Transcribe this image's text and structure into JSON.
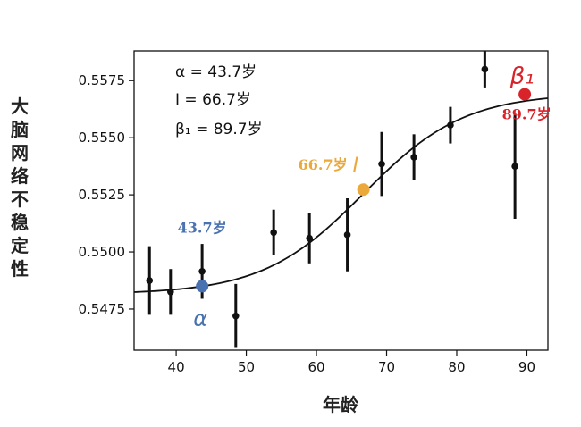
{
  "chart_data": {
    "type": "scatter",
    "xlabel": "年龄",
    "ylabel": "大脑网络不稳定性",
    "xlim": [
      34,
      93
    ],
    "ylim": [
      0.5457,
      0.5588
    ],
    "xticks": [
      40,
      50,
      60,
      70,
      80,
      90
    ],
    "xtick_labels": [
      "40",
      "50",
      "60",
      "70",
      "80",
      "90"
    ],
    "yticks": [
      0.5475,
      0.55,
      0.5525,
      0.555,
      0.5575
    ],
    "ytick_labels": [
      "0.5475",
      "0.5500",
      "0.5525",
      "0.5550",
      "0.5575"
    ],
    "grid": false,
    "points": [
      {
        "x": 36.2,
        "y": 0.54875,
        "err": 0.0015
      },
      {
        "x": 39.2,
        "y": 0.54825,
        "err": 0.001
      },
      {
        "x": 43.7,
        "y": 0.54915,
        "err": 0.0012
      },
      {
        "x": 48.5,
        "y": 0.5472,
        "err": 0.0014
      },
      {
        "x": 53.9,
        "y": 0.55085,
        "err": 0.001
      },
      {
        "x": 59.0,
        "y": 0.5506,
        "err": 0.0011
      },
      {
        "x": 64.4,
        "y": 0.55075,
        "err": 0.0016
      },
      {
        "x": 69.3,
        "y": 0.55385,
        "err": 0.0014
      },
      {
        "x": 73.9,
        "y": 0.55415,
        "err": 0.001
      },
      {
        "x": 79.1,
        "y": 0.55555,
        "err": 0.0008
      },
      {
        "x": 84.0,
        "y": 0.558,
        "err": 0.0008
      },
      {
        "x": 88.3,
        "y": 0.55375,
        "err": 0.0023
      }
    ],
    "fit_curve": {
      "low": 0.54815,
      "high": 0.55695,
      "midpoint": 66.7,
      "scale": 7.2
    },
    "markers": [
      {
        "id": "alpha",
        "x": 43.7,
        "y": 0.5485,
        "color": "#4a72b0",
        "value_label": "43.7岁",
        "symbol": "α"
      },
      {
        "id": "inflection",
        "x": 66.7,
        "y": 0.55273,
        "color": "#eaa93a",
        "value_label": "66.7岁",
        "symbol": "I"
      },
      {
        "id": "beta1",
        "x": 89.7,
        "y": 0.5569,
        "color": "#d8232a",
        "value_label": "89.7岁",
        "symbol": "β₁"
      }
    ],
    "annotations": [
      "α = 43.7岁",
      "I = 66.7岁",
      "β₁ = 89.7岁"
    ]
  },
  "colors": {
    "point": "#111111",
    "curve": "#111111",
    "frame": "#111111"
  }
}
